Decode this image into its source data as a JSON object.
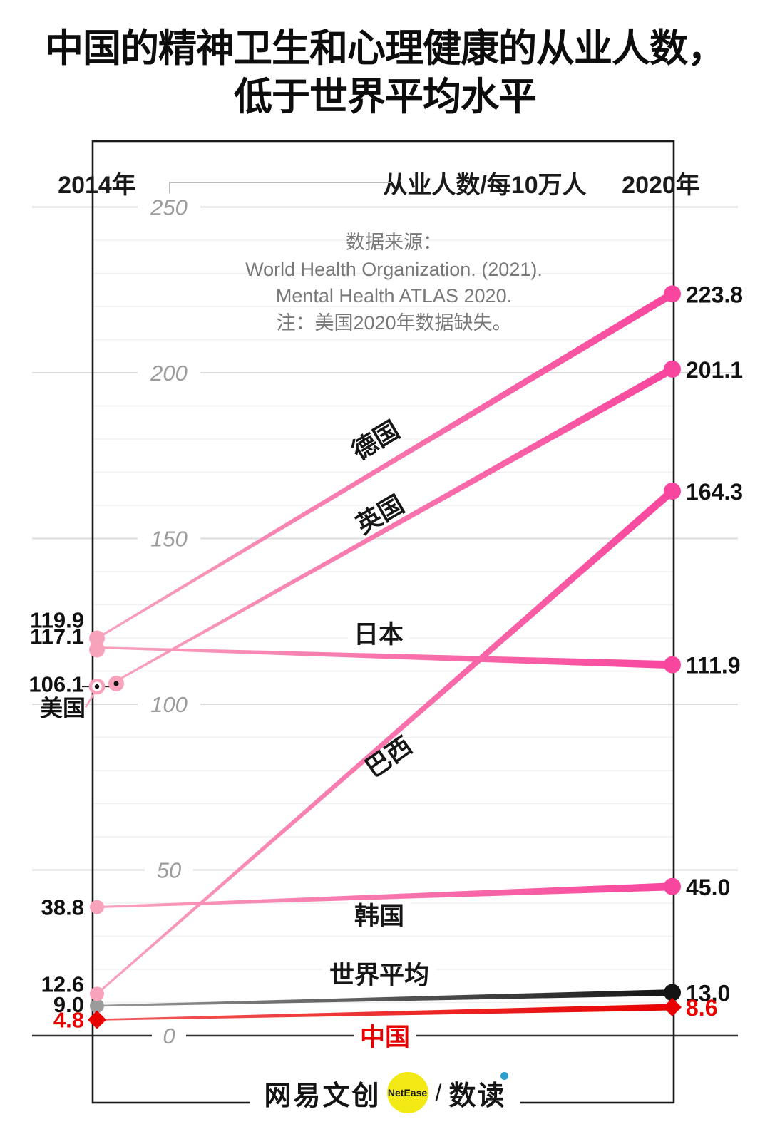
{
  "title": {
    "line1": "中国的精神卫生和心理健康的从业人数，",
    "line2": "低于世界平均水平"
  },
  "axis": {
    "left_year": "2014年",
    "right_year": "2020年",
    "unit_label": "从业人数/每10万人",
    "ticks": [
      250,
      200,
      150,
      100,
      50,
      0
    ],
    "tick_color": "#9c9c9c"
  },
  "source": {
    "line1": "数据来源：",
    "line2": "World Health Organization. (2021).",
    "line3": "Mental Health ATLAS 2020.",
    "line4": "注：美国2020年数据缺失。"
  },
  "footer": {
    "brand_cn": "网易文创",
    "brand_en": "NetEase",
    "separator": "/",
    "brand_sub": "数读",
    "circle_color": "#f3ea15",
    "dot_color": "#2a9fd0"
  },
  "chart_data": {
    "type": "line",
    "subtype": "slopegraph",
    "x": [
      "2014",
      "2020"
    ],
    "xlabel": "",
    "ylabel": "从业人数/每10万人",
    "ylim": [
      0,
      250
    ],
    "grid": "horizontal, major every 50 (labeled), minor every 10",
    "legend_position": "labels on lines",
    "series": [
      {
        "key": "germany",
        "name": "德国",
        "values": [
          119.9,
          223.8
        ],
        "label_2014": "119.9",
        "label_2020": "223.8",
        "color_2014": "#f7a3bc",
        "color_2020": "#f8469e",
        "marker": "circle"
      },
      {
        "key": "uk",
        "name": "英国",
        "values": [
          107,
          201.1
        ],
        "estimated_2014": true,
        "label_2014": null,
        "label_2020": "201.1",
        "color_2014": "#f7a3bc",
        "color_2020": "#f8469e",
        "marker": "circle"
      },
      {
        "key": "brazil",
        "name": "巴西",
        "values": [
          12.6,
          164.3
        ],
        "label_2014": "12.6",
        "label_2020": "164.3",
        "color_2014": "#f7a3bc",
        "color_2020": "#f8469e",
        "marker": "circle"
      },
      {
        "key": "japan",
        "name": "日本",
        "values": [
          117.1,
          111.9
        ],
        "label_2014": "117.1",
        "label_2020": "111.9",
        "color_2014": "#f7a3bc",
        "color_2020": "#f8469e",
        "marker": "circle"
      },
      {
        "key": "usa",
        "name": "美国",
        "values": [
          106.1,
          null
        ],
        "label_2014": "106.1",
        "label_2020": null,
        "color_2014": "#f7a3bc",
        "color_2020": "#f8469e",
        "marker": "open-circle",
        "annotation": "美国",
        "annotation_note": "2020 data missing"
      },
      {
        "key": "korea",
        "name": "韩国",
        "values": [
          38.8,
          45.0
        ],
        "label_2014": "38.8",
        "label_2020": "45.0",
        "color_2014": "#f7a3bc",
        "color_2020": "#f8469e",
        "marker": "circle"
      },
      {
        "key": "world_average",
        "name": "世界平均",
        "values": [
          9.0,
          13.0
        ],
        "label_2014": "9.0",
        "label_2020": "13.0",
        "color_2014": "#9b9b9b",
        "color_2020": "#141414",
        "marker": "circle"
      },
      {
        "key": "china",
        "name": "中国",
        "values": [
          4.8,
          8.6
        ],
        "label_2014": "4.8",
        "label_2020": "8.6",
        "label_color": "#e60000",
        "name_color": "#e60000",
        "color_2014": "#f25d5d",
        "color_2020": "#e80000",
        "marker": "diamond"
      }
    ]
  }
}
